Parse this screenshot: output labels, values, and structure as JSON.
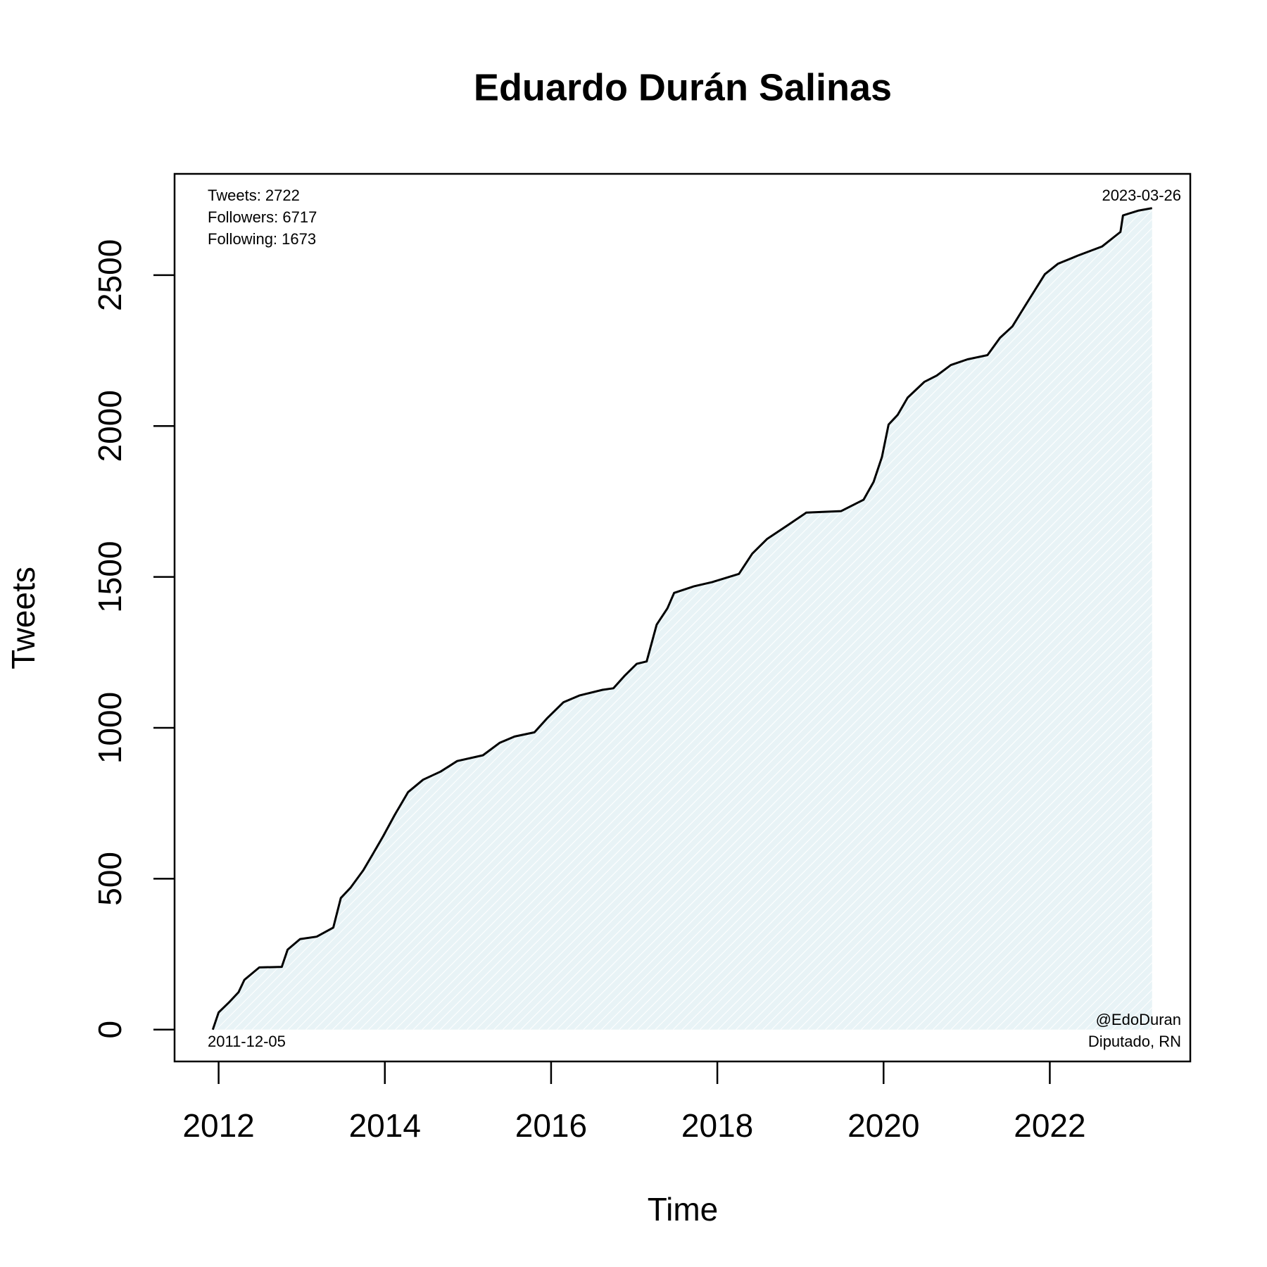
{
  "chart_data": {
    "type": "area",
    "title": "Eduardo Durán Salinas",
    "x_label": "Time",
    "y_label": "Tweets",
    "color": "#000000",
    "fill_color": "#e8f3f6",
    "x": [
      2011.93,
      2012.0,
      2012.12,
      2012.24,
      2012.31,
      2012.49,
      2012.76,
      2012.83,
      2012.98,
      2013.18,
      2013.38,
      2013.47,
      2013.59,
      2013.74,
      2013.85,
      2013.98,
      2014.12,
      2014.28,
      2014.46,
      2014.67,
      2014.87,
      2015.18,
      2015.38,
      2015.56,
      2015.8,
      2015.95,
      2016.15,
      2016.34,
      2016.62,
      2016.75,
      2016.89,
      2017.03,
      2017.15,
      2017.27,
      2017.4,
      2017.48,
      2017.72,
      2017.94,
      2018.26,
      2018.42,
      2018.6,
      2018.85,
      2019.07,
      2019.49,
      2019.76,
      2019.88,
      2019.98,
      2020.06,
      2020.17,
      2020.29,
      2020.49,
      2020.64,
      2020.81,
      2021.01,
      2021.25,
      2021.4,
      2021.55,
      2021.7,
      2021.94,
      2022.1,
      2022.34,
      2022.63,
      2022.85,
      2022.88,
      2023.07,
      2023.23
    ],
    "values": [
      0,
      57,
      89,
      124,
      165,
      206,
      208,
      265,
      300,
      308,
      338,
      436,
      471,
      528,
      579,
      641,
      712,
      787,
      828,
      855,
      890,
      909,
      950,
      971,
      985,
      1031,
      1085,
      1107,
      1126,
      1131,
      1174,
      1212,
      1220,
      1342,
      1396,
      1447,
      1469,
      1483,
      1510,
      1577,
      1626,
      1672,
      1713,
      1718,
      1756,
      1815,
      1897,
      2005,
      2037,
      2094,
      2146,
      2167,
      2202,
      2221,
      2235,
      2292,
      2330,
      2397,
      2503,
      2538,
      2565,
      2595,
      2643,
      2698,
      2714,
      2722
    ],
    "xlim": [
      2011.47,
      2023.69
    ],
    "xticks": [
      2012,
      2014,
      2016,
      2018,
      2020,
      2022
    ],
    "ylim": [
      -105.5,
      2835.5
    ],
    "yticks": [
      0,
      500,
      1000,
      1500,
      2000,
      2500
    ],
    "annotations": {
      "top_left": [
        "Tweets: 2722",
        "Followers: 6717",
        "Following: 1673"
      ],
      "top_right": [
        "2023-03-26"
      ],
      "bottom_left": [
        "2011-12-05"
      ],
      "bottom_right": [
        "@EdoDuran",
        "Diputado, RN"
      ]
    }
  }
}
